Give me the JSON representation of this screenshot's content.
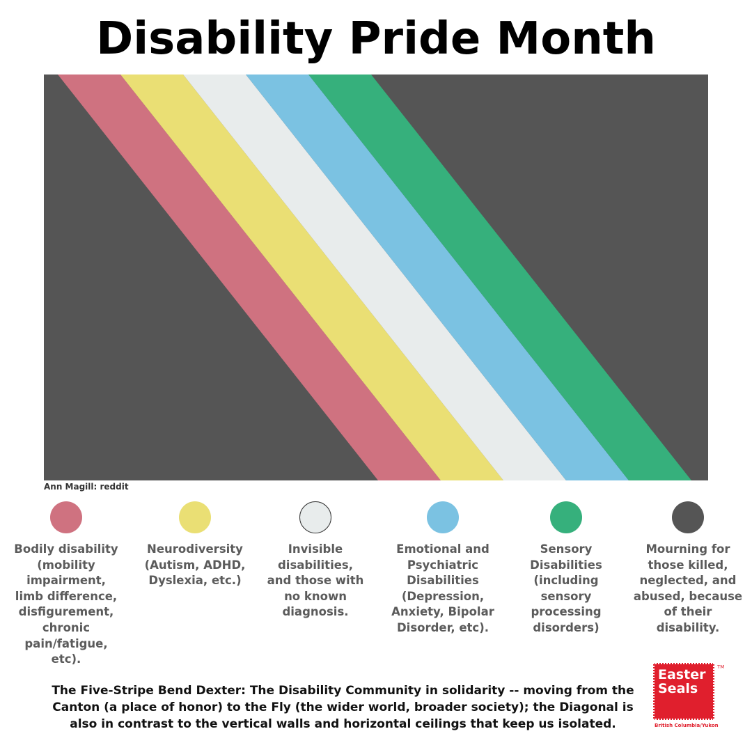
{
  "title": "Disability Pride Month",
  "credit": "Ann Magill: reddit",
  "flag": {
    "background_color": "#555555",
    "stripes": [
      {
        "name": "red-stripe",
        "color": "#cf7280"
      },
      {
        "name": "yellow-stripe",
        "color": "#eadf74"
      },
      {
        "name": "white-stripe",
        "color": "#e8ecec"
      },
      {
        "name": "blue-stripe",
        "color": "#7bc2e2"
      },
      {
        "name": "green-stripe",
        "color": "#36b07c"
      }
    ]
  },
  "legend": [
    {
      "color": "#cf7280",
      "label": "Bodily disability\n(mobility\nimpairment,\nlimb difference,\ndisfigurement,\nchronic\npain/fatigue,\netc)."
    },
    {
      "color": "#eadf74",
      "label": "Neurodiversity\n(Autism, ADHD,\nDyslexia, etc.)"
    },
    {
      "color": "#e8ecec",
      "label": "Invisible\ndisabilities,\nand those with\nno known\ndiagnosis."
    },
    {
      "color": "#7bc2e2",
      "label": "Emotional and\nPsychiatric\nDisabilities\n(Depression,\nAnxiety, Bipolar\nDisorder, etc)."
    },
    {
      "color": "#36b07c",
      "label": "Sensory\nDisabilities\n(including\nsensory\nprocessing\ndisorders)"
    },
    {
      "color": "#555555",
      "label": "Mourning for\nthose killed,\nneglected, and\nabused, because\nof their\ndisability."
    }
  ],
  "caption": "The Five-Stripe Bend Dexter: The Disability Community in solidarity -- moving from the\nCanton (a place of honor) to the Fly (the wider world, broader society); the Diagonal is\nalso in contrast to the vertical walls and horizontal ceilings that keep us isolated.",
  "logo": {
    "text": "Easter\nSeals",
    "subtext": "British Columbia/Yukon",
    "tm": "TM"
  }
}
